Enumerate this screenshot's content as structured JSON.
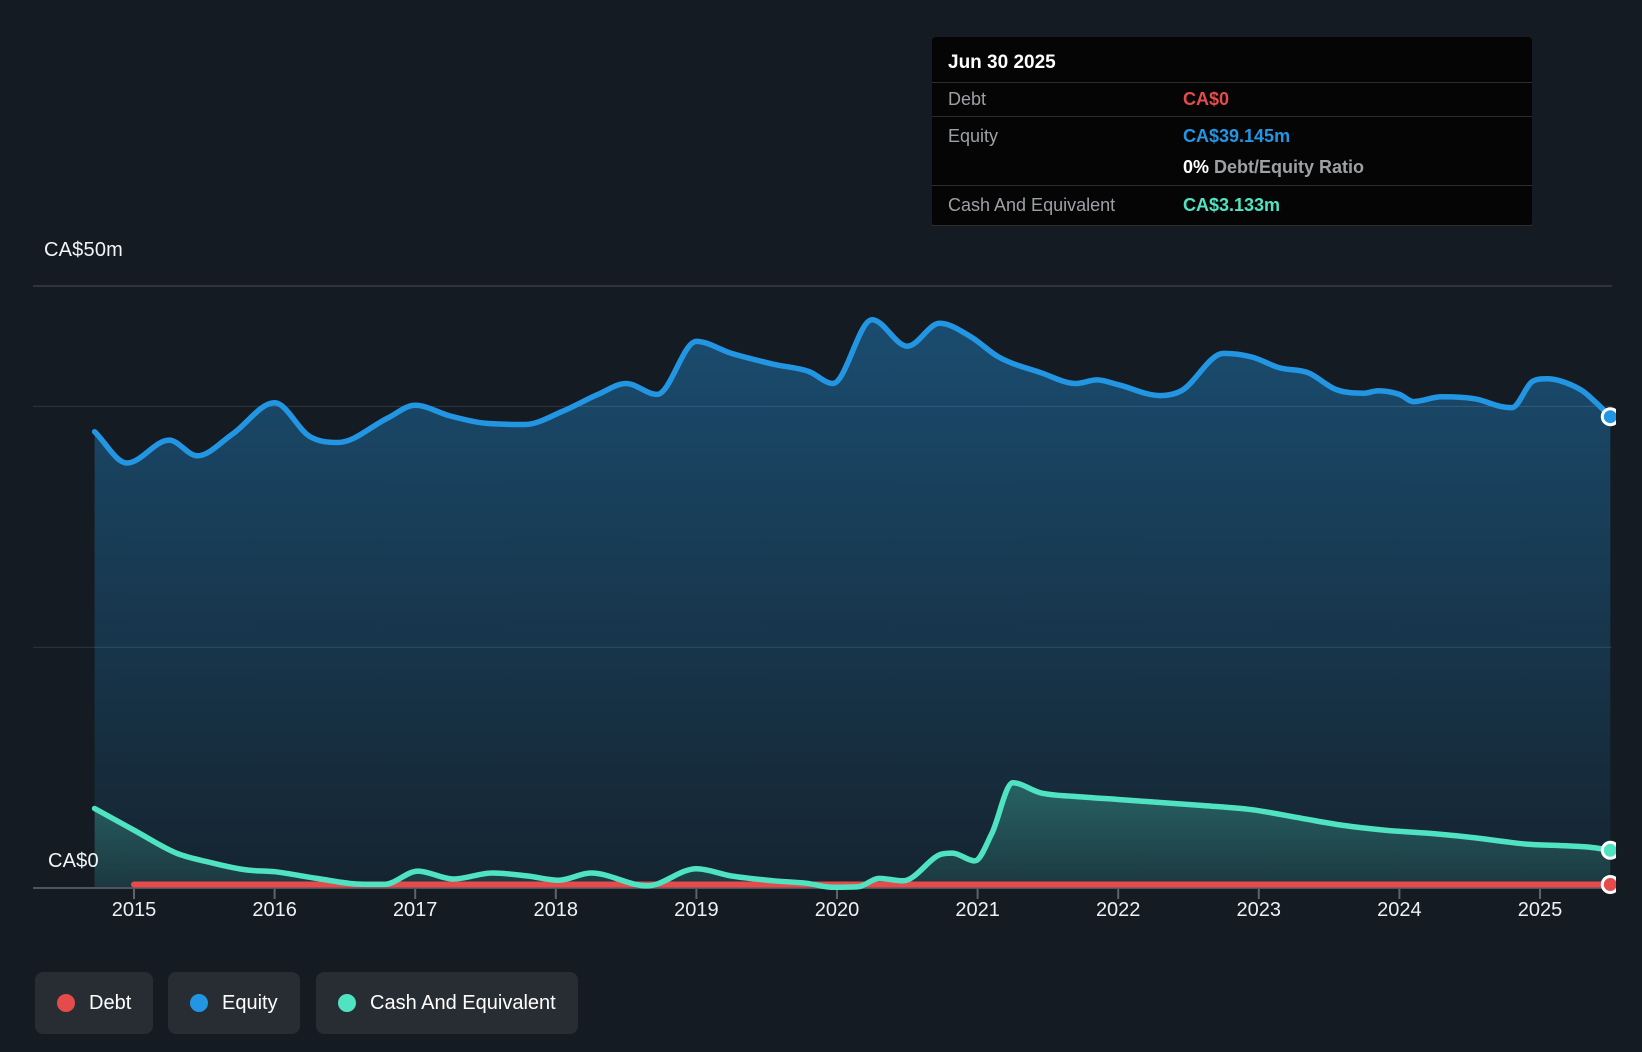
{
  "tooltip": {
    "date": "Jun 30 2025",
    "rows": [
      {
        "label": "Debt",
        "value": "CA$0",
        "color": "#e64b4b"
      },
      {
        "label": "Equity",
        "value": "CA$39.145m",
        "color": "#2396e3"
      }
    ],
    "ratio": {
      "value": "0%",
      "label": "Debt/Equity Ratio"
    },
    "cash_row": {
      "label": "Cash And Equivalent",
      "value": "CA$3.133m",
      "color": "#50e3c2"
    }
  },
  "legend": {
    "items": [
      {
        "label": "Debt",
        "color": "#e64b4b"
      },
      {
        "label": "Equity",
        "color": "#2396e3"
      },
      {
        "label": "Cash And Equivalent",
        "color": "#50e3c2"
      }
    ]
  },
  "chart_data": {
    "type": "area",
    "unit": "CA$ millions",
    "x_axis": {
      "ticks": [
        2015,
        2016,
        2017,
        2018,
        2019,
        2020,
        2021,
        2022,
        2023,
        2024,
        2025
      ],
      "range": [
        2014.72,
        2025.5
      ]
    },
    "y_axis": {
      "top_label": "CA$50m",
      "zero_label": "CA$0",
      "ylim": [
        0,
        50
      ],
      "grid_values": [
        50,
        40,
        20
      ]
    },
    "series": [
      {
        "name": "Debt",
        "color": "#e64b4b",
        "fill": false,
        "points": [
          [
            2015.0,
            0
          ],
          [
            2025.5,
            0
          ]
        ]
      },
      {
        "name": "Equity",
        "color": "#2396e3",
        "fill": true,
        "points": [
          [
            2014.72,
            37.9
          ],
          [
            2014.95,
            35.3
          ],
          [
            2015.25,
            37.2
          ],
          [
            2015.45,
            35.9
          ],
          [
            2015.7,
            37.7
          ],
          [
            2016.0,
            40.3
          ],
          [
            2016.25,
            37.5
          ],
          [
            2016.45,
            37.0
          ],
          [
            2016.8,
            39.0
          ],
          [
            2017.0,
            40.1
          ],
          [
            2017.25,
            39.2
          ],
          [
            2017.5,
            38.6
          ],
          [
            2017.78,
            38.5
          ],
          [
            2018.05,
            39.6
          ],
          [
            2018.3,
            41.0
          ],
          [
            2018.5,
            41.9
          ],
          [
            2018.72,
            41.0
          ],
          [
            2019.0,
            45.4
          ],
          [
            2019.25,
            44.4
          ],
          [
            2019.55,
            43.5
          ],
          [
            2019.8,
            42.9
          ],
          [
            2019.97,
            41.9
          ],
          [
            2020.25,
            47.2
          ],
          [
            2020.5,
            45.0
          ],
          [
            2020.73,
            46.9
          ],
          [
            2020.95,
            45.8
          ],
          [
            2021.15,
            44.1
          ],
          [
            2021.45,
            42.8
          ],
          [
            2021.7,
            41.9
          ],
          [
            2021.85,
            42.2
          ],
          [
            2022.0,
            41.8
          ],
          [
            2022.3,
            40.9
          ],
          [
            2022.45,
            41.3
          ],
          [
            2022.75,
            44.4
          ],
          [
            2022.95,
            44.1
          ],
          [
            2023.15,
            43.2
          ],
          [
            2023.35,
            42.8
          ],
          [
            2023.55,
            41.4
          ],
          [
            2023.75,
            41.1
          ],
          [
            2023.85,
            41.3
          ],
          [
            2024.0,
            41.0
          ],
          [
            2024.1,
            40.4
          ],
          [
            2024.3,
            40.8
          ],
          [
            2024.55,
            40.6
          ],
          [
            2024.72,
            40.0
          ],
          [
            2024.8,
            39.9
          ],
          [
            2024.95,
            42.1
          ],
          [
            2025.05,
            42.3
          ],
          [
            2025.15,
            42.1
          ],
          [
            2025.3,
            41.3
          ],
          [
            2025.4,
            40.3
          ],
          [
            2025.5,
            39.145
          ]
        ]
      },
      {
        "name": "Cash And Equivalent",
        "color": "#50e3c2",
        "fill": true,
        "points": [
          [
            2014.72,
            6.6
          ],
          [
            2015.0,
            4.8
          ],
          [
            2015.3,
            2.9
          ],
          [
            2015.55,
            2.1
          ],
          [
            2015.8,
            1.5
          ],
          [
            2016.0,
            1.35
          ],
          [
            2016.3,
            0.8
          ],
          [
            2016.6,
            0.32
          ],
          [
            2016.78,
            0.3
          ],
          [
            2017.02,
            1.4
          ],
          [
            2017.27,
            0.75
          ],
          [
            2017.55,
            1.25
          ],
          [
            2017.8,
            1.0
          ],
          [
            2018.02,
            0.65
          ],
          [
            2018.25,
            1.25
          ],
          [
            2018.65,
            0.18
          ],
          [
            2019.0,
            1.6
          ],
          [
            2019.25,
            1.0
          ],
          [
            2019.55,
            0.6
          ],
          [
            2019.78,
            0.4
          ],
          [
            2019.97,
            0.06
          ],
          [
            2020.15,
            0.1
          ],
          [
            2020.3,
            0.8
          ],
          [
            2020.47,
            0.6
          ],
          [
            2020.74,
            2.8
          ],
          [
            2020.82,
            2.9
          ],
          [
            2020.98,
            2.25
          ],
          [
            2021.1,
            4.5
          ],
          [
            2021.25,
            8.74
          ],
          [
            2021.45,
            7.9
          ],
          [
            2021.7,
            7.6
          ],
          [
            2022.0,
            7.35
          ],
          [
            2022.3,
            7.1
          ],
          [
            2022.6,
            6.85
          ],
          [
            2022.95,
            6.5
          ],
          [
            2023.3,
            5.8
          ],
          [
            2023.6,
            5.2
          ],
          [
            2023.9,
            4.8
          ],
          [
            2024.25,
            4.5
          ],
          [
            2024.55,
            4.15
          ],
          [
            2024.78,
            3.8
          ],
          [
            2024.9,
            3.65
          ],
          [
            2025.2,
            3.5
          ],
          [
            2025.35,
            3.4
          ],
          [
            2025.5,
            3.133
          ]
        ]
      }
    ]
  }
}
